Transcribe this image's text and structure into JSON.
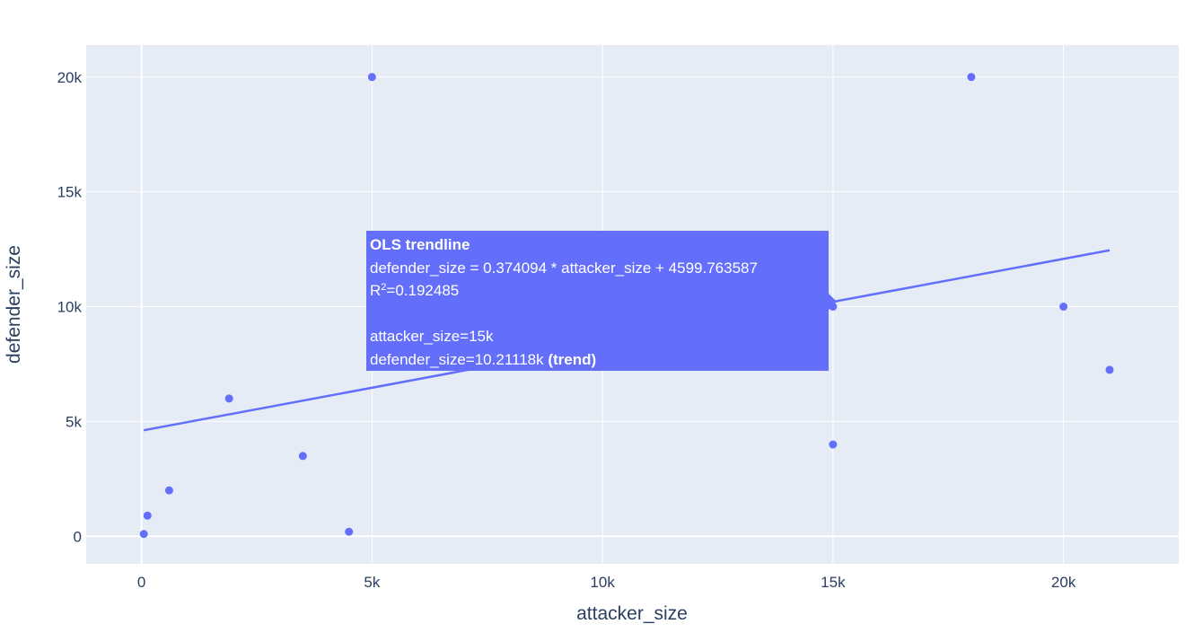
{
  "chart_data": {
    "type": "scatter",
    "xlabel": "attacker_size",
    "ylabel": "defender_size",
    "xlim": [
      -1200,
      22500
    ],
    "ylim": [
      -1200,
      21400
    ],
    "x_ticks": [
      0,
      5000,
      10000,
      15000,
      20000
    ],
    "x_tick_labels": [
      "0",
      "5k",
      "10k",
      "15k",
      "20k"
    ],
    "y_ticks": [
      0,
      5000,
      10000,
      15000,
      20000
    ],
    "y_tick_labels": [
      "0",
      "5k",
      "10k",
      "15k",
      "20k"
    ],
    "grid": true,
    "marker_color": "#636efa",
    "line_color": "#636efa",
    "plot_background": "#e5ecf6",
    "series": [
      {
        "type": "scatter",
        "points": [
          {
            "x": 50,
            "y": 100
          },
          {
            "x": 130,
            "y": 900
          },
          {
            "x": 600,
            "y": 2000
          },
          {
            "x": 1900,
            "y": 6000
          },
          {
            "x": 3500,
            "y": 3500
          },
          {
            "x": 4500,
            "y": 200
          },
          {
            "x": 5000,
            "y": 20000
          },
          {
            "x": 15000,
            "y": 10000
          },
          {
            "x": 15000,
            "y": 4000
          },
          {
            "x": 18000,
            "y": 20000
          },
          {
            "x": 20000,
            "y": 10000
          },
          {
            "x": 21000,
            "y": 7250
          }
        ]
      },
      {
        "type": "line",
        "points": [
          {
            "x": 50,
            "y": 4618.47
          },
          {
            "x": 21000,
            "y": 12455.74
          }
        ]
      }
    ],
    "hover_tooltip": {
      "title": "OLS trendline",
      "equation": "defender_size = 0.374094 * attacker_size + 4599.763587",
      "r_squared_label": "R",
      "r_squared_sup": "2",
      "r_squared_value": "=0.192485",
      "x_line": "attacker_size=15k",
      "y_line": "defender_size=10.21118k",
      "y_line_suffix": "(trend)",
      "x": 15000,
      "y": 10211.18
    }
  }
}
